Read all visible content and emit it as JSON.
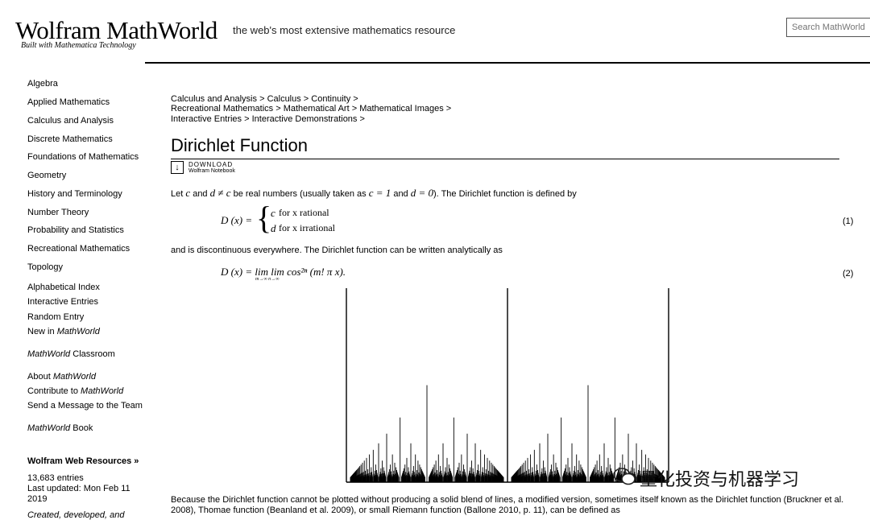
{
  "header": {
    "logo": "Wolfram MathWorld",
    "logo_tagline": "Built with Mathematica Technology",
    "site_tagline": "the web's most extensive mathematics resource",
    "search_placeholder": "Search MathWorld"
  },
  "sidebar": {
    "topics": [
      "Algebra",
      "Applied Mathematics",
      "Calculus and Analysis",
      "Discrete Mathematics",
      "Foundations of Mathematics",
      "Geometry",
      "History and Terminology",
      "Number Theory",
      "Probability and Statistics",
      "Recreational Mathematics",
      "Topology"
    ],
    "nav": [
      "Alphabetical Index",
      "Interactive Entries",
      "Random Entry"
    ],
    "new_in_prefix": "New in ",
    "new_in_emph": "MathWorld",
    "classroom_emph": "MathWorld",
    "classroom_suffix": " Classroom",
    "about_prefix": "About ",
    "about_emph": "MathWorld",
    "contribute_prefix": "Contribute to ",
    "contribute_emph": "MathWorld",
    "send_message": "Send a Message to the Team",
    "book_emph": "MathWorld",
    "book_suffix": " Book",
    "resources_title": "Wolfram Web Resources »",
    "entries": "13,683 entries",
    "last_updated_1": "Last updated: Mon Feb 11",
    "last_updated_2": "2019",
    "cutoff": "Created, developed, and"
  },
  "breadcrumbs": [
    [
      "Calculus and Analysis",
      "Calculus",
      "Continuity"
    ],
    [
      "Recreational Mathematics",
      "Mathematical Art",
      "Mathematical Images"
    ],
    [
      "Interactive Entries",
      "Interactive Demonstrations"
    ]
  ],
  "article": {
    "title": "Dirichlet Function",
    "download_label": "DOWNLOAD",
    "download_sub": "Wolfram Notebook",
    "intro_1": "Let ",
    "intro_c": "c",
    "intro_and": " and ",
    "intro_dnec": "d ≠ c",
    "intro_2": " be real numbers (usually taken as ",
    "intro_c1": "c = 1",
    "intro_and2": " and ",
    "intro_d0": "d = 0",
    "intro_3": "). The Dirichlet function is defined by",
    "eq1_lhs": "D (x) =",
    "eq1_case1_val": "c",
    "eq1_case1_cond": "for x rational",
    "eq1_case2_val": "d",
    "eq1_case2_cond": "for x irrational",
    "eq1_num": "(1)",
    "mid_text": "and is discontinuous everywhere. The Dirichlet function can be written analytically as",
    "eq2": "D (x) = lim lim cos²ⁿ (m! π x).",
    "eq2_sub": "m→∞ n→∞",
    "eq2_num": "(2)",
    "bottom_1": "Because the Dirichlet function cannot be plotted without producing a solid blend of lines, a modified version, sometimes itself known as the Dirichlet function (Bruckner et al.",
    "bottom_2": "2008), Thomae function (Beanland et al. 2009), or small Riemann function (Ballone 2010, p. 11), can be defined as"
  },
  "watermark": "量化投资与机器学习"
}
